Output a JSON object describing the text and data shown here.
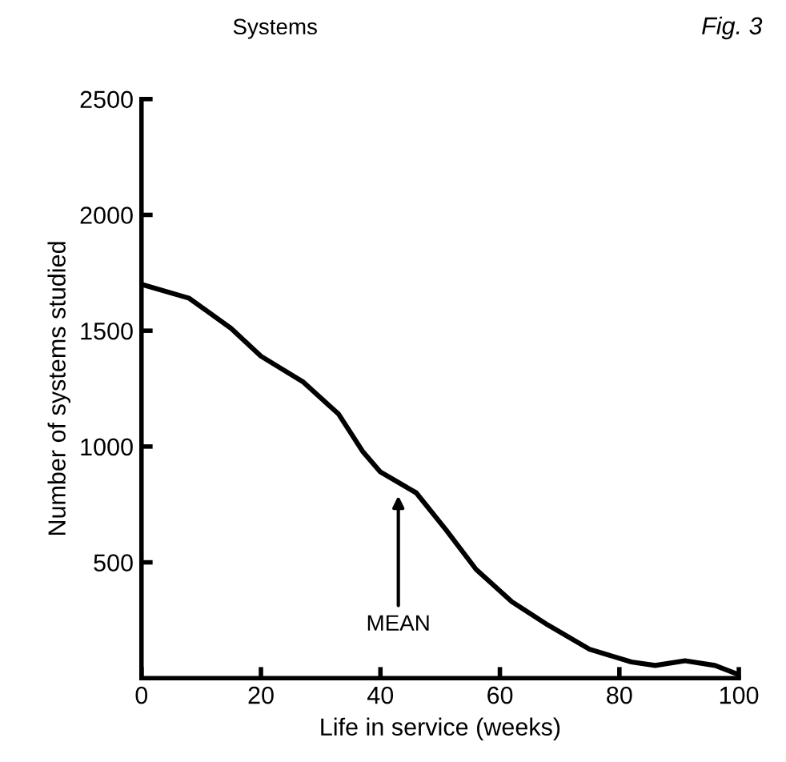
{
  "chart_data": {
    "type": "line",
    "title": "Systems",
    "xlabel": "Life in service (weeks)",
    "ylabel": "Number of systems studied",
    "annotations": [
      "MEAN",
      "Fig. 3"
    ],
    "x": [
      0,
      8,
      15,
      20,
      27,
      33,
      37,
      40,
      46,
      51,
      56,
      62,
      68,
      75,
      82,
      86,
      91,
      96,
      100
    ],
    "series": [
      {
        "color": "#000000",
        "values": [
          1700,
          1640,
          1510,
          1390,
          1280,
          1140,
          980,
          890,
          800,
          640,
          470,
          330,
          230,
          125,
          70,
          55,
          75,
          55,
          15
        ]
      }
    ],
    "xlim": [
      0,
      100
    ],
    "ylim": [
      0,
      2500
    ],
    "xticks": [
      0,
      20,
      40,
      60,
      80,
      100
    ],
    "yticks": [
      500,
      1000,
      1500,
      2000,
      2500
    ],
    "grid": false,
    "legend": false,
    "marker": "none",
    "line_style": "solid"
  }
}
